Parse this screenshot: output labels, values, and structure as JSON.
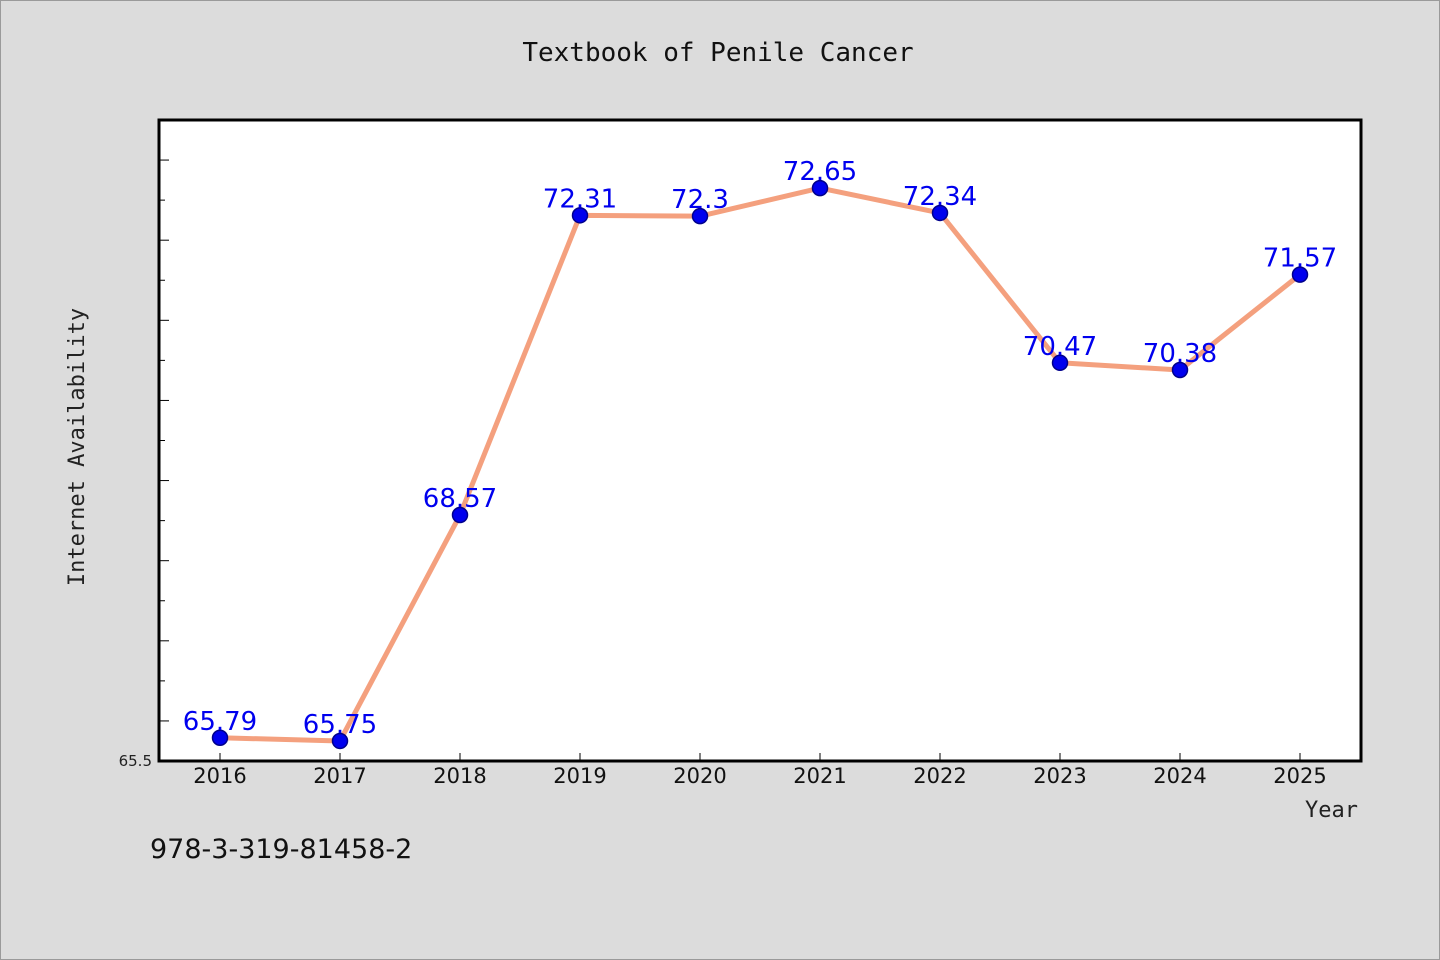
{
  "chart_data": {
    "type": "line",
    "title": "Textbook of Penile Cancer",
    "xlabel": "Year",
    "ylabel": "Internet Availability",
    "categories": [
      "2016",
      "2017",
      "2018",
      "2019",
      "2020",
      "2021",
      "2022",
      "2023",
      "2024",
      "2025"
    ],
    "series": [
      {
        "values": [
          65.79,
          65.75,
          68.57,
          72.31,
          72.3,
          72.65,
          72.34,
          70.47,
          70.38,
          71.57
        ],
        "labels": [
          "65.79",
          "65.75",
          "68.57",
          "72.31",
          "72.3",
          "72.65",
          "72.34",
          "70.47",
          "70.38",
          "71.57"
        ]
      }
    ],
    "ylim": [
      65.5,
      73.5
    ],
    "yticks_labeled": [
      "65.5"
    ],
    "grid": false,
    "legend": "none",
    "colors": {
      "line": "#f4a07e",
      "marker": "#0000ee",
      "marker_edge": "#00008b",
      "data_label": "#0000ee",
      "plot_background": "#ffffff",
      "figure_background": "#dcdcdc"
    }
  },
  "footer": {
    "isbn": "978-3-319-81458-2"
  }
}
